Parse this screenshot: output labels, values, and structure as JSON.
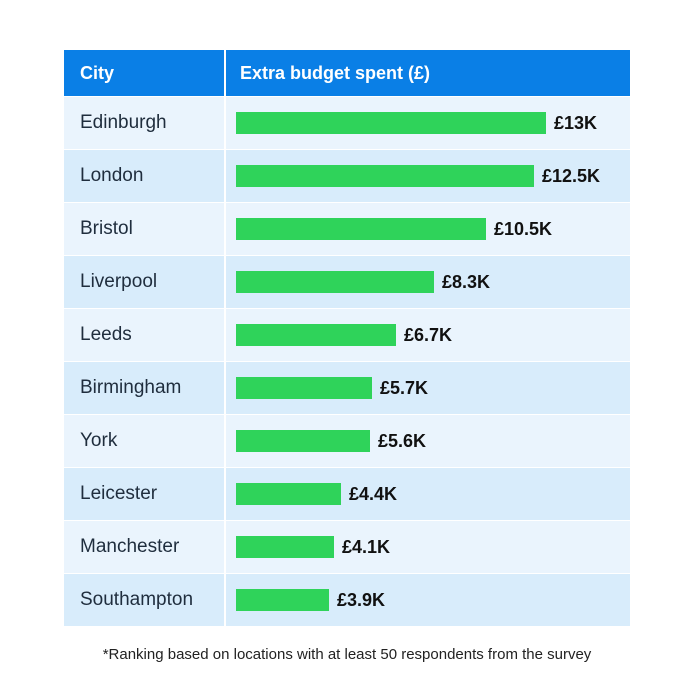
{
  "table": {
    "header_city": "City",
    "header_budget": "Extra budget spent (£)"
  },
  "footnote": "*Ranking based on locations with at least 50 respondents from the survey",
  "colors": {
    "header": "#0a7fe6",
    "bar": "#2fd35a",
    "row_light": "#eaf4fd",
    "row_dark": "#d8ecfb"
  },
  "chart_data": {
    "type": "bar",
    "orientation": "horizontal",
    "categories": [
      "Edinburgh",
      "London",
      "Bristol",
      "Liverpool",
      "Leeds",
      "Birmingham",
      "York",
      "Leicester",
      "Manchester",
      "Southampton"
    ],
    "values": [
      13,
      12.5,
      10.5,
      8.3,
      6.7,
      5.7,
      5.6,
      4.4,
      4.1,
      3.9
    ],
    "labels": [
      "£13K",
      "£12.5K",
      "£10.5K",
      "£8.3K",
      "£6.7K",
      "£5.7K",
      "£5.6K",
      "£4.4K",
      "£4.1K",
      "£3.9K"
    ],
    "unit": "£K",
    "xlim": [
      0,
      13
    ]
  }
}
